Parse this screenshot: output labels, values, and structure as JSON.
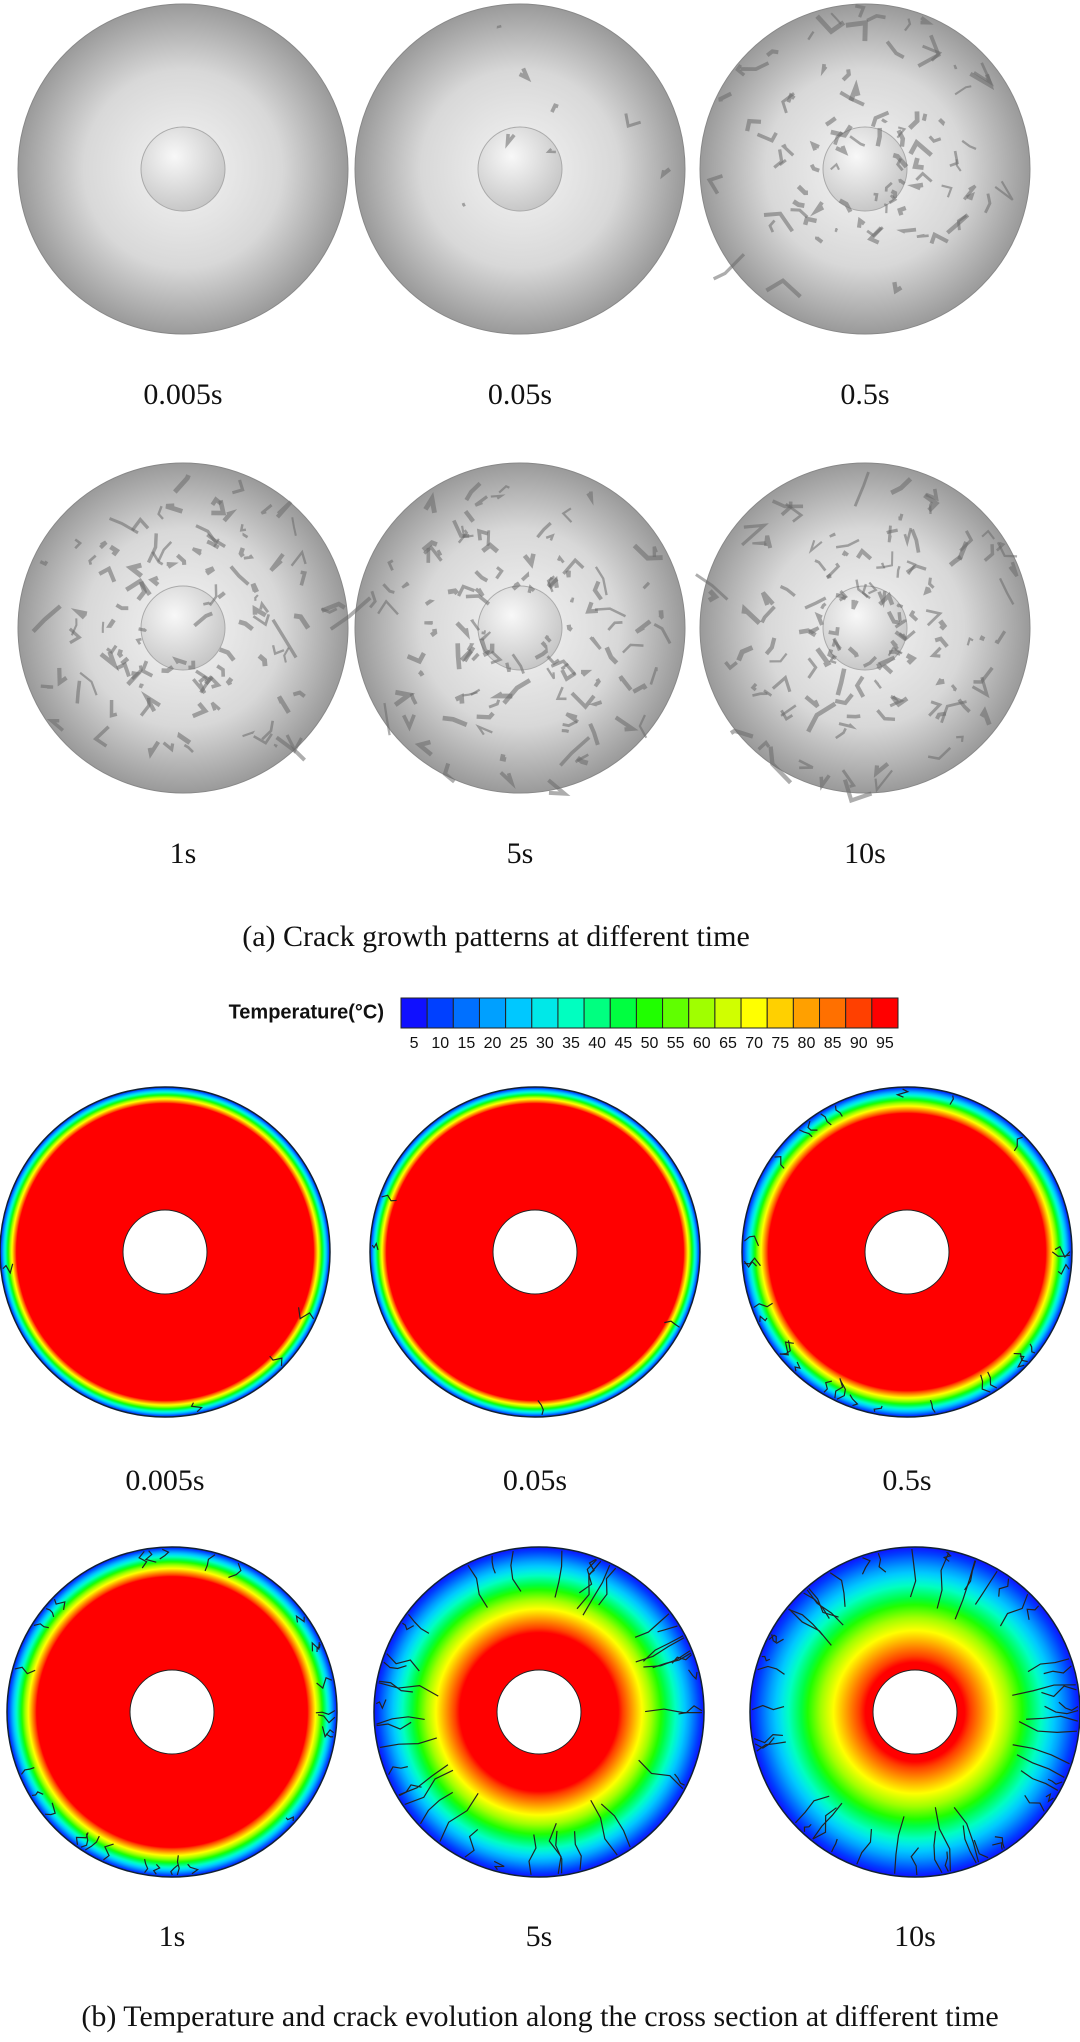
{
  "panel_a": {
    "images": [
      {
        "label": "0.005s"
      },
      {
        "label": "0.05s"
      },
      {
        "label": "0.5s"
      },
      {
        "label": "1s"
      },
      {
        "label": "5s"
      },
      {
        "label": "10s"
      }
    ],
    "caption": "(a) Crack growth patterns at different time"
  },
  "colorbar": {
    "title": "Temperature(°C)",
    "ticks": [
      5,
      10,
      15,
      20,
      25,
      30,
      35,
      40,
      45,
      50,
      55,
      60,
      65,
      70,
      75,
      80,
      85,
      90,
      95
    ],
    "colors": [
      "#1010ff",
      "#0040ff",
      "#0070ff",
      "#00a0ff",
      "#00c8ff",
      "#00e8e8",
      "#00ffc0",
      "#00ff80",
      "#00ff40",
      "#20ff00",
      "#60ff00",
      "#a0ff00",
      "#d0ff00",
      "#ffff00",
      "#ffd000",
      "#ffa000",
      "#ff7000",
      "#ff4000",
      "#ff0000"
    ]
  },
  "panel_b": {
    "images": [
      {
        "label": "0.005s"
      },
      {
        "label": "0.05s"
      },
      {
        "label": "0.5s"
      },
      {
        "label": "1s"
      },
      {
        "label": "5s"
      },
      {
        "label": "10s"
      }
    ],
    "caption": "(b) Temperature and crack evolution along the cross section at different time"
  }
}
